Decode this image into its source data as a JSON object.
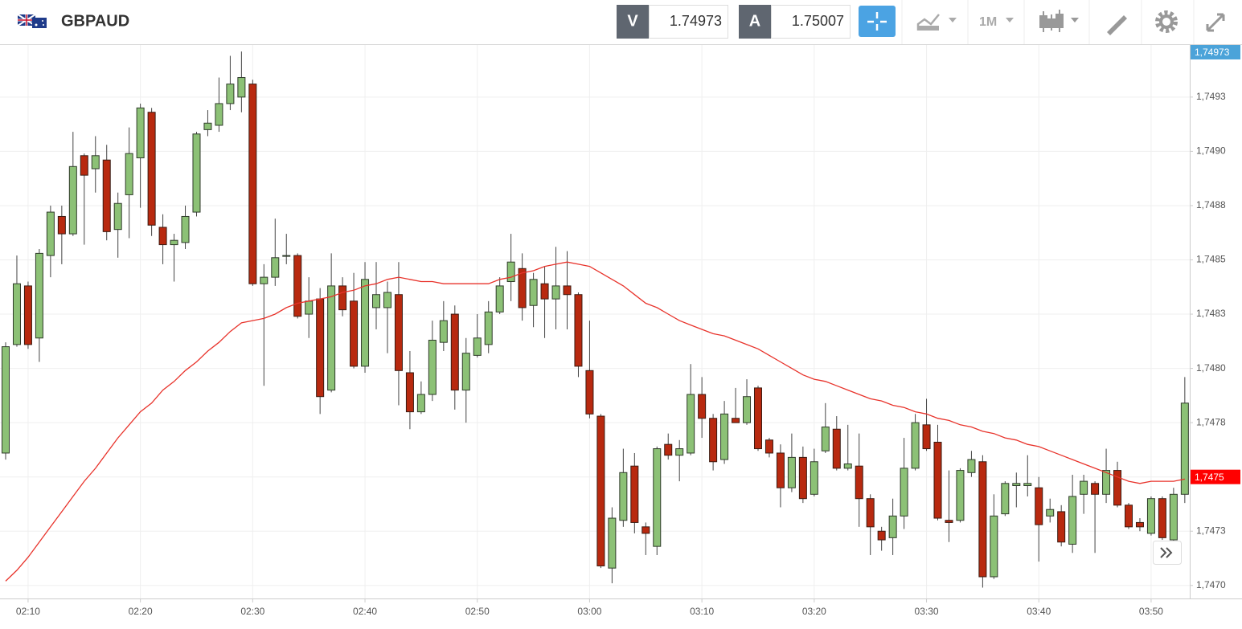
{
  "toolbar": {
    "symbol": "GBPAUD",
    "bid_label": "V",
    "bid": 1.74973,
    "ask_label": "A",
    "ask": 1.75007,
    "interval": "1M"
  },
  "chart_data": {
    "type": "candlestick",
    "up_color": "#8cc176",
    "down_color": "#b8290f",
    "grid": true,
    "x": [
      "02:08",
      "02:09",
      "02:10",
      "02:11",
      "02:12",
      "02:13",
      "02:14",
      "02:15",
      "02:16",
      "02:17",
      "02:18",
      "02:19",
      "02:20",
      "02:21",
      "02:22",
      "02:23",
      "02:24",
      "02:25",
      "02:26",
      "02:27",
      "02:28",
      "02:29",
      "02:30",
      "02:31",
      "02:32",
      "02:33",
      "02:34",
      "02:35",
      "02:36",
      "02:37",
      "02:38",
      "02:39",
      "02:40",
      "02:41",
      "02:42",
      "02:43",
      "02:44",
      "02:45",
      "02:46",
      "02:47",
      "02:48",
      "02:49",
      "02:50",
      "02:51",
      "02:52",
      "02:53",
      "02:54",
      "02:55",
      "02:56",
      "02:57",
      "02:58",
      "02:59",
      "03:00",
      "03:01",
      "03:02",
      "03:03",
      "03:04",
      "03:05",
      "03:06",
      "03:07",
      "03:08",
      "03:09",
      "03:10",
      "03:11",
      "03:12",
      "03:13",
      "03:14",
      "03:15",
      "03:16",
      "03:17",
      "03:18",
      "03:19",
      "03:20",
      "03:21",
      "03:22",
      "03:23",
      "03:24",
      "03:25",
      "03:26",
      "03:27",
      "03:28",
      "03:29",
      "03:30",
      "03:31",
      "03:32",
      "03:33",
      "03:34",
      "03:35",
      "03:36",
      "03:37",
      "03:38",
      "03:39",
      "03:40",
      "03:41",
      "03:42",
      "03:43",
      "03:44",
      "03:45",
      "03:46",
      "03:47",
      "03:48",
      "03:49",
      "03:50",
      "03:51",
      "03:52",
      "03:53"
    ],
    "open": [
      1.74761,
      1.74811,
      1.74838,
      1.74814,
      1.74852,
      1.7487,
      1.74862,
      1.74898,
      1.74892,
      1.74896,
      1.74864,
      1.7488,
      1.74897,
      1.74918,
      1.74865,
      1.74857,
      1.74858,
      1.74872,
      1.7491,
      1.74912,
      1.74922,
      1.74925,
      1.74931,
      1.74839,
      1.74842,
      1.74852,
      1.74852,
      1.74825,
      1.74832,
      1.7479,
      1.74838,
      1.74831,
      1.74801,
      1.74828,
      1.74828,
      1.74834,
      1.74798,
      1.7478,
      1.74788,
      1.74812,
      1.74825,
      1.7479,
      1.74806,
      1.74811,
      1.74826,
      1.7484,
      1.74846,
      1.74829,
      1.74839,
      1.74832,
      1.74838,
      1.74834,
      1.74799,
      1.74778,
      1.74708,
      1.7473,
      1.74755,
      1.74727,
      1.74718,
      1.74765,
      1.7476,
      1.74761,
      1.74788,
      1.74777,
      1.74758,
      1.74777,
      1.74775,
      1.74791,
      1.74767,
      1.74761,
      1.74745,
      1.74759,
      1.74742,
      1.74762,
      1.74772,
      1.74754,
      1.74755,
      1.7474,
      1.74725,
      1.74722,
      1.74732,
      1.74754,
      1.74774,
      1.74766,
      1.7473,
      1.7473,
      1.74752,
      1.74757,
      1.74704,
      1.74733,
      1.74746,
      1.74746,
      1.74745,
      1.74732,
      1.74734,
      1.74719,
      1.74742,
      1.74747,
      1.74742,
      1.74753,
      1.74737,
      1.74729,
      1.74724,
      1.7474,
      1.74721,
      1.74742
    ],
    "high": [
      1.74812,
      1.74852,
      1.7484,
      1.74855,
      1.74875,
      1.74875,
      1.74909,
      1.74899,
      1.74907,
      1.74903,
      1.74881,
      1.74911,
      1.74922,
      1.7492,
      1.74871,
      1.74862,
      1.74875,
      1.74909,
      1.74919,
      1.74934,
      1.74944,
      1.74946,
      1.74933,
      1.74848,
      1.74869,
      1.74862,
      1.74853,
      1.74842,
      1.74837,
      1.74853,
      1.74842,
      1.74844,
      1.74849,
      1.74849,
      1.7484,
      1.74849,
      1.74808,
      1.74794,
      1.74822,
      1.74831,
      1.74829,
      1.74814,
      1.74825,
      1.74831,
      1.74842,
      1.74862,
      1.74853,
      1.74844,
      1.74847,
      1.74856,
      1.74854,
      1.74835,
      1.74822,
      1.74779,
      1.74736,
      1.74763,
      1.74761,
      1.74729,
      1.74764,
      1.7477,
      1.74767,
      1.74802,
      1.74796,
      1.74779,
      1.74785,
      1.74791,
      1.74795,
      1.74792,
      1.74768,
      1.74765,
      1.7477,
      1.74764,
      1.74763,
      1.74784,
      1.74778,
      1.74774,
      1.7477,
      1.74742,
      1.74727,
      1.7474,
      1.74768,
      1.74779,
      1.74786,
      1.74774,
      1.74753,
      1.74754,
      1.74762,
      1.7476,
      1.74742,
      1.74748,
      1.74752,
      1.7476,
      1.7475,
      1.7474,
      1.74737,
      1.74751,
      1.74751,
      1.74748,
      1.74763,
      1.74757,
      1.74738,
      1.74731,
      1.74741,
      1.74741,
      1.74745,
      1.74796
    ],
    "low": [
      1.74758,
      1.7481,
      1.74809,
      1.74803,
      1.74842,
      1.74848,
      1.74861,
      1.74857,
      1.74881,
      1.74859,
      1.74851,
      1.7486,
      1.74874,
      1.74861,
      1.74848,
      1.7484,
      1.74855,
      1.7487,
      1.74907,
      1.74909,
      1.74919,
      1.74918,
      1.74838,
      1.74792,
      1.74838,
      1.74848,
      1.74823,
      1.74814,
      1.74779,
      1.74789,
      1.74824,
      1.748,
      1.74798,
      1.74818,
      1.74807,
      1.74783,
      1.74772,
      1.74779,
      1.74785,
      1.74808,
      1.74781,
      1.74775,
      1.74805,
      1.74807,
      1.74825,
      1.74831,
      1.74822,
      1.74819,
      1.74814,
      1.74818,
      1.74818,
      1.74796,
      1.74777,
      1.74708,
      1.74701,
      1.74727,
      1.74724,
      1.74714,
      1.74714,
      1.74758,
      1.74748,
      1.7476,
      1.74768,
      1.74753,
      1.74756,
      1.74775,
      1.74774,
      1.74762,
      1.74759,
      1.74736,
      1.74743,
      1.74738,
      1.74741,
      1.74761,
      1.74753,
      1.74753,
      1.74727,
      1.74714,
      1.74716,
      1.74714,
      1.74726,
      1.74753,
      1.74762,
      1.7473,
      1.7472,
      1.74729,
      1.7475,
      1.74699,
      1.74703,
      1.74732,
      1.74736,
      1.74741,
      1.74711,
      1.74729,
      1.74718,
      1.74715,
      1.74733,
      1.74715,
      1.74738,
      1.74736,
      1.74726,
      1.74725,
      1.74723,
      1.74721,
      1.74718,
      1.74738
    ],
    "close": [
      1.7481,
      1.74839,
      1.74811,
      1.74853,
      1.74872,
      1.74862,
      1.74893,
      1.74889,
      1.74898,
      1.74863,
      1.74876,
      1.74899,
      1.7492,
      1.74866,
      1.74857,
      1.74859,
      1.7487,
      1.74908,
      1.74913,
      1.74922,
      1.74931,
      1.74934,
      1.74839,
      1.74842,
      1.74851,
      1.74852,
      1.74824,
      1.74831,
      1.74787,
      1.74838,
      1.74827,
      1.74801,
      1.74841,
      1.74834,
      1.74835,
      1.74799,
      1.7478,
      1.74788,
      1.74813,
      1.74822,
      1.7479,
      1.74807,
      1.74814,
      1.74826,
      1.74838,
      1.74849,
      1.74828,
      1.74841,
      1.74832,
      1.74838,
      1.74834,
      1.74801,
      1.74779,
      1.74709,
      1.74731,
      1.74752,
      1.74729,
      1.74724,
      1.74763,
      1.7476,
      1.74763,
      1.74788,
      1.74777,
      1.74757,
      1.74779,
      1.74775,
      1.74787,
      1.74763,
      1.74761,
      1.74745,
      1.74759,
      1.7474,
      1.74757,
      1.74773,
      1.74754,
      1.74756,
      1.7474,
      1.74727,
      1.74721,
      1.74732,
      1.74754,
      1.74775,
      1.74763,
      1.74731,
      1.74729,
      1.74753,
      1.74758,
      1.74704,
      1.74732,
      1.74747,
      1.74747,
      1.74747,
      1.74728,
      1.74735,
      1.7472,
      1.74741,
      1.74748,
      1.74742,
      1.74753,
      1.74737,
      1.74727,
      1.74727,
      1.7474,
      1.74722,
      1.74742,
      1.74784
    ],
    "overlays": [
      {
        "color": "#e8332b",
        "values": [
          1.74702,
          1.74707,
          1.74713,
          1.7472,
          1.74727,
          1.74734,
          1.74741,
          1.74748,
          1.74754,
          1.74761,
          1.74768,
          1.74774,
          1.7478,
          1.74784,
          1.7479,
          1.74794,
          1.74799,
          1.74803,
          1.74808,
          1.74812,
          1.74817,
          1.74821,
          1.74822,
          1.74823,
          1.74825,
          1.74828,
          1.7483,
          1.74831,
          1.74832,
          1.74833,
          1.74835,
          1.74836,
          1.74838,
          1.74839,
          1.74841,
          1.74842,
          1.74841,
          1.7484,
          1.7484,
          1.74839,
          1.74839,
          1.74839,
          1.74839,
          1.74839,
          1.74841,
          1.74842,
          1.74844,
          1.74845,
          1.74847,
          1.74848,
          1.74849,
          1.74848,
          1.74847,
          1.74844,
          1.74841,
          1.74838,
          1.74834,
          1.7483,
          1.74828,
          1.74825,
          1.74822,
          1.7482,
          1.74818,
          1.74816,
          1.74815,
          1.74813,
          1.74811,
          1.74809,
          1.74806,
          1.74803,
          1.748,
          1.74797,
          1.74795,
          1.74794,
          1.74792,
          1.7479,
          1.74788,
          1.74786,
          1.74785,
          1.74783,
          1.74782,
          1.7478,
          1.74779,
          1.74777,
          1.74776,
          1.74774,
          1.74773,
          1.74771,
          1.7477,
          1.74768,
          1.74767,
          1.74765,
          1.74764,
          1.74762,
          1.7476,
          1.74758,
          1.74756,
          1.74754,
          1.74752,
          1.7475,
          1.74748,
          1.74747,
          1.74748,
          1.74748,
          1.74748,
          1.74749
        ]
      }
    ],
    "ylim": [
      1.74694,
      1.74949
    ],
    "yticks": [
      {
        "value": 1.747,
        "label": "1,7470"
      },
      {
        "value": 1.74725,
        "label": "1,7473"
      },
      {
        "value": 1.7475,
        "label": "1,7475"
      },
      {
        "value": 1.74775,
        "label": "1,7478"
      },
      {
        "value": 1.748,
        "label": "1,7480"
      },
      {
        "value": 1.74825,
        "label": "1,7483"
      },
      {
        "value": 1.7485,
        "label": "1,7485"
      },
      {
        "value": 1.74875,
        "label": "1,7488"
      },
      {
        "value": 1.749,
        "label": "1,7490"
      },
      {
        "value": 1.74925,
        "label": "1,7493"
      }
    ],
    "xticks": [
      "02:10",
      "02:20",
      "02:30",
      "02:40",
      "02:50",
      "03:00",
      "03:10",
      "03:20",
      "03:30",
      "03:40",
      "03:50"
    ],
    "price_tags": [
      {
        "value": 1.74973,
        "label": "1,74973",
        "color": "#4ba3d9"
      },
      {
        "value": 1.7475,
        "label": "1,7475",
        "color": "#ff0000"
      }
    ]
  }
}
